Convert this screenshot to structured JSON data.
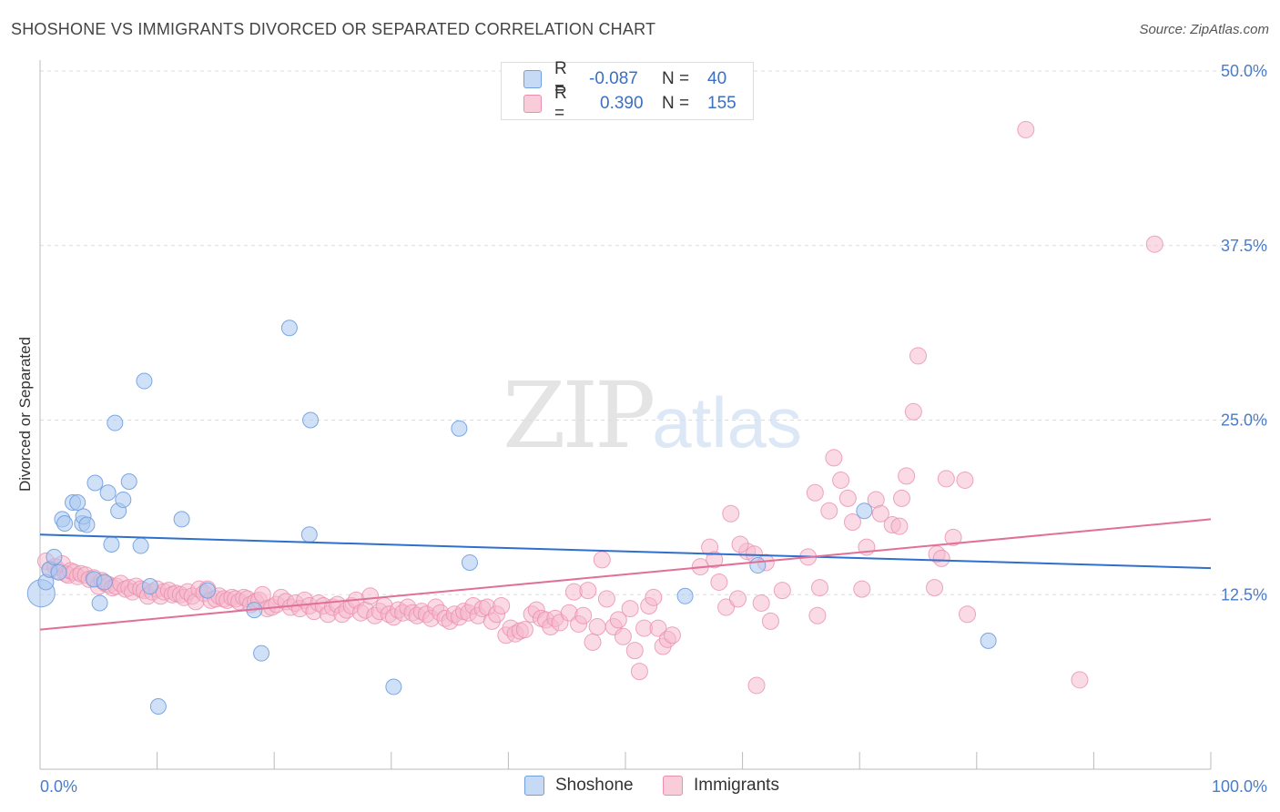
{
  "title": "SHOSHONE VS IMMIGRANTS DIVORCED OR SEPARATED CORRELATION CHART",
  "source": "Source: ZipAtlas.com",
  "watermark": {
    "zip": "ZIP",
    "atlas": "atlas"
  },
  "legend": {
    "r_label": "R =",
    "n_label": "N =",
    "rows": [
      {
        "r": "-0.087",
        "n": "40"
      },
      {
        "r": "0.390",
        "n": "155"
      }
    ]
  },
  "bottom_legend": [
    "Shoshone",
    "Immigrants"
  ],
  "colors": {
    "shoshone_fill": "#a9c8f0",
    "shoshone_stroke": "#6f9fe0",
    "shoshone_line": "#2f6fcd",
    "immigrants_fill": "#f5b8cb",
    "immigrants_stroke": "#ea8fae",
    "immigrants_line": "#e0709a",
    "tick_label": "#4a7cc7",
    "grid": "#dddddd"
  },
  "chart_data": {
    "type": "scatter",
    "title": "SHOSHONE VS IMMIGRANTS DIVORCED OR SEPARATED CORRELATION CHART",
    "xlabel": "",
    "ylabel": "Divorced or Separated",
    "xlim": [
      0,
      100
    ],
    "ylim": [
      0,
      50
    ],
    "x_tick_labels": [
      "0.0%",
      "100.0%"
    ],
    "y_ticks": [
      12.5,
      25.0,
      37.5,
      50.0
    ],
    "y_tick_labels": [
      "12.5%",
      "25.0%",
      "37.5%",
      "50.0%"
    ],
    "grid": "horizontal dashed",
    "legend_position": "top-center",
    "series": [
      {
        "name": "Shoshone",
        "trend": {
          "x": [
            0,
            100
          ],
          "y": [
            16.8,
            14.4
          ]
        },
        "points": [
          [
            0.1,
            12.6,
            26
          ],
          [
            0.5,
            13.4,
            14
          ],
          [
            0.8,
            14.3,
            14
          ],
          [
            1.2,
            15.2,
            14
          ],
          [
            1.6,
            14.1,
            14
          ],
          [
            1.9,
            17.9,
            14
          ],
          [
            2.1,
            17.6,
            14
          ],
          [
            2.8,
            19.1,
            14
          ],
          [
            3.2,
            19.1,
            14
          ],
          [
            3.6,
            17.6,
            14
          ],
          [
            3.7,
            18.1,
            14
          ],
          [
            4.0,
            17.5,
            14
          ],
          [
            4.6,
            13.6,
            14
          ],
          [
            4.7,
            20.5,
            14
          ],
          [
            5.1,
            11.9,
            14
          ],
          [
            5.5,
            13.4,
            14
          ],
          [
            5.8,
            19.8,
            14
          ],
          [
            6.1,
            16.1,
            14
          ],
          [
            6.4,
            24.8,
            14
          ],
          [
            6.7,
            18.5,
            14
          ],
          [
            7.1,
            19.3,
            14
          ],
          [
            7.6,
            20.6,
            14
          ],
          [
            8.6,
            16.0,
            14
          ],
          [
            8.9,
            27.8,
            14
          ],
          [
            9.4,
            13.1,
            14
          ],
          [
            10.1,
            4.5,
            14
          ],
          [
            12.1,
            17.9,
            14
          ],
          [
            14.3,
            12.8,
            14
          ],
          [
            18.3,
            11.4,
            14
          ],
          [
            18.9,
            8.3,
            14
          ],
          [
            21.3,
            31.6,
            14
          ],
          [
            23.0,
            16.8,
            14
          ],
          [
            23.1,
            25.0,
            14
          ],
          [
            30.2,
            5.9,
            14
          ],
          [
            35.8,
            24.4,
            14
          ],
          [
            36.7,
            14.8,
            14
          ],
          [
            55.1,
            12.4,
            14
          ],
          [
            61.3,
            14.6,
            14
          ],
          [
            70.4,
            18.5,
            14
          ],
          [
            81.0,
            9.2,
            14
          ]
        ]
      },
      {
        "name": "Immigrants",
        "trend": {
          "x": [
            0,
            100
          ],
          "y": [
            10.0,
            17.9
          ]
        },
        "points": [
          [
            0.5,
            14.9
          ],
          [
            0.9,
            14.3
          ],
          [
            1.3,
            14.5
          ],
          [
            1.6,
            14.2
          ],
          [
            1.9,
            14.7
          ],
          [
            2.2,
            14.0
          ],
          [
            2.4,
            13.9
          ],
          [
            2.6,
            14.2
          ],
          [
            2.9,
            14.1
          ],
          [
            3.2,
            13.8
          ],
          [
            3.5,
            14.0
          ],
          [
            3.9,
            13.9
          ],
          [
            4.2,
            13.6
          ],
          [
            4.6,
            13.7
          ],
          [
            5.0,
            13.1
          ],
          [
            5.3,
            13.5
          ],
          [
            5.6,
            13.3
          ],
          [
            5.9,
            13.2
          ],
          [
            6.2,
            13.0
          ],
          [
            6.5,
            13.1
          ],
          [
            6.9,
            13.3
          ],
          [
            7.3,
            12.9
          ],
          [
            7.6,
            13.0
          ],
          [
            7.9,
            12.7
          ],
          [
            8.2,
            13.1
          ],
          [
            8.6,
            12.9
          ],
          [
            8.9,
            12.8
          ],
          [
            9.2,
            12.4
          ],
          [
            9.6,
            12.7
          ],
          [
            10.0,
            12.9
          ],
          [
            10.3,
            12.4
          ],
          [
            10.6,
            12.7
          ],
          [
            11.0,
            12.8
          ],
          [
            11.3,
            12.5
          ],
          [
            11.6,
            12.6
          ],
          [
            12.0,
            12.5
          ],
          [
            12.3,
            12.3
          ],
          [
            12.6,
            12.7
          ],
          [
            13.0,
            12.4
          ],
          [
            13.3,
            12.0
          ],
          [
            13.6,
            12.9
          ],
          [
            14.0,
            12.6
          ],
          [
            14.3,
            12.9
          ],
          [
            14.6,
            12.1
          ],
          [
            15.0,
            12.2
          ],
          [
            15.3,
            12.4
          ],
          [
            15.7,
            12.2
          ],
          [
            16.0,
            12.1
          ],
          [
            16.4,
            12.3
          ],
          [
            16.7,
            12.2
          ],
          [
            17.0,
            12.0
          ],
          [
            17.4,
            12.3
          ],
          [
            17.7,
            12.2
          ],
          [
            18.0,
            11.8
          ],
          [
            18.4,
            12.0
          ],
          [
            18.7,
            12.1
          ],
          [
            19.0,
            12.5
          ],
          [
            19.4,
            11.5
          ],
          [
            19.8,
            11.6
          ],
          [
            20.2,
            11.8
          ],
          [
            20.6,
            12.3
          ],
          [
            21.0,
            12.0
          ],
          [
            21.4,
            11.6
          ],
          [
            21.8,
            11.9
          ],
          [
            22.2,
            11.5
          ],
          [
            22.6,
            12.1
          ],
          [
            23.0,
            11.7
          ],
          [
            23.4,
            11.3
          ],
          [
            23.8,
            11.9
          ],
          [
            24.2,
            11.7
          ],
          [
            24.6,
            11.1
          ],
          [
            25.0,
            11.6
          ],
          [
            25.4,
            11.8
          ],
          [
            25.8,
            11.1
          ],
          [
            26.2,
            11.4
          ],
          [
            26.6,
            11.7
          ],
          [
            27.0,
            12.1
          ],
          [
            27.4,
            11.2
          ],
          [
            27.8,
            11.4
          ],
          [
            28.2,
            12.4
          ],
          [
            28.6,
            11.0
          ],
          [
            29.0,
            11.3
          ],
          [
            29.4,
            11.7
          ],
          [
            29.8,
            11.1
          ],
          [
            30.2,
            10.9
          ],
          [
            30.6,
            11.4
          ],
          [
            31.0,
            11.2
          ],
          [
            31.4,
            11.6
          ],
          [
            31.8,
            11.2
          ],
          [
            32.2,
            11.0
          ],
          [
            32.6,
            11.3
          ],
          [
            33.0,
            11.1
          ],
          [
            33.4,
            10.8
          ],
          [
            33.8,
            11.6
          ],
          [
            34.2,
            11.2
          ],
          [
            34.6,
            10.8
          ],
          [
            35.0,
            10.6
          ],
          [
            35.4,
            11.1
          ],
          [
            35.8,
            10.9
          ],
          [
            36.2,
            11.3
          ],
          [
            36.6,
            11.2
          ],
          [
            37.0,
            11.7
          ],
          [
            37.4,
            11.0
          ],
          [
            37.8,
            11.5
          ],
          [
            38.2,
            11.6
          ],
          [
            38.6,
            10.6
          ],
          [
            39.0,
            11.1
          ],
          [
            39.4,
            11.7
          ],
          [
            39.8,
            9.6
          ],
          [
            40.2,
            10.1
          ],
          [
            40.6,
            9.7
          ],
          [
            41.0,
            9.9
          ],
          [
            41.4,
            10.0
          ],
          [
            42.0,
            11.1
          ],
          [
            42.4,
            11.4
          ],
          [
            42.8,
            10.8
          ],
          [
            43.2,
            10.7
          ],
          [
            43.6,
            10.2
          ],
          [
            44.0,
            10.8
          ],
          [
            44.4,
            10.5
          ],
          [
            45.2,
            11.2
          ],
          [
            45.6,
            12.7
          ],
          [
            46.0,
            10.4
          ],
          [
            46.4,
            11.0
          ],
          [
            46.8,
            12.8
          ],
          [
            47.2,
            9.1
          ],
          [
            47.6,
            10.2
          ],
          [
            48.0,
            15.0
          ],
          [
            48.4,
            12.2
          ],
          [
            49.0,
            10.2
          ],
          [
            49.4,
            10.7
          ],
          [
            49.8,
            9.5
          ],
          [
            50.4,
            11.5
          ],
          [
            50.8,
            8.5
          ],
          [
            51.2,
            7.0
          ],
          [
            51.6,
            10.1
          ],
          [
            52.0,
            11.7
          ],
          [
            52.4,
            12.3
          ],
          [
            52.8,
            10.1
          ],
          [
            53.2,
            8.8
          ],
          [
            53.6,
            9.3
          ],
          [
            54.0,
            9.6
          ],
          [
            58.0,
            13.4
          ],
          [
            58.6,
            11.6
          ],
          [
            59.0,
            18.3
          ],
          [
            59.6,
            12.2
          ],
          [
            60.4,
            15.6
          ],
          [
            61.6,
            11.9
          ],
          [
            62.4,
            10.6
          ],
          [
            63.4,
            12.8
          ],
          [
            65.6,
            15.2
          ],
          [
            66.2,
            19.8
          ],
          [
            66.6,
            13.0
          ],
          [
            67.4,
            18.5
          ],
          [
            69.4,
            17.7
          ],
          [
            70.6,
            15.9
          ]
        ]
      }
    ],
    "immigrant_extra_points": [
      [
        56.4,
        14.5
      ],
      [
        57.2,
        15.9
      ],
      [
        57.6,
        15.0
      ],
      [
        59.8,
        16.1
      ],
      [
        61.0,
        15.4
      ],
      [
        62.0,
        14.8
      ],
      [
        67.8,
        22.3
      ],
      [
        68.4,
        20.7
      ],
      [
        69.0,
        19.4
      ],
      [
        71.4,
        19.3
      ],
      [
        71.8,
        18.3
      ],
      [
        72.8,
        17.5
      ],
      [
        73.6,
        19.4
      ],
      [
        74.0,
        21.0
      ],
      [
        74.6,
        25.6
      ],
      [
        75.0,
        29.6
      ],
      [
        76.6,
        15.4
      ],
      [
        77.4,
        20.8
      ],
      [
        79.0,
        20.7
      ],
      [
        84.2,
        45.8
      ],
      [
        88.8,
        6.4
      ],
      [
        95.2,
        37.6
      ],
      [
        61.2,
        6.0
      ],
      [
        66.4,
        11.0
      ],
      [
        70.2,
        12.9
      ],
      [
        73.4,
        17.4
      ],
      [
        79.2,
        11.1
      ],
      [
        76.4,
        13.0
      ],
      [
        77.0,
        15.1
      ],
      [
        78.0,
        16.6
      ]
    ]
  }
}
